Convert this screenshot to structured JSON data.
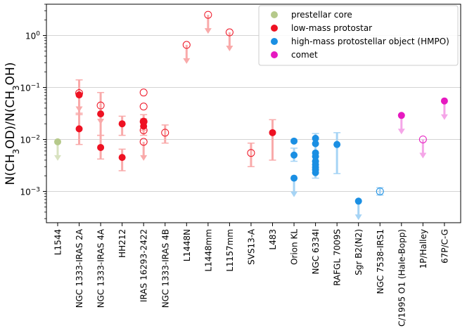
{
  "chart_data": {
    "type": "scatter",
    "title": "",
    "xlabel": "",
    "ylabel": "N(CH3OD)/N(CH3OH)",
    "ylabel_parts": {
      "p1": "N(CH",
      "s1": "3",
      "p2": "OD)/N(CH",
      "s2": "3",
      "p3": "OH)"
    },
    "yscale": "log",
    "ylim": [
      0.00025,
      4
    ],
    "y_ticks": [
      {
        "value": 0.001,
        "base": "10",
        "exp": "−3"
      },
      {
        "value": 0.01,
        "base": "10",
        "exp": "−2"
      },
      {
        "value": 0.1,
        "base": "10",
        "exp": "−1"
      },
      {
        "value": 1,
        "base": "10",
        "exp": "0"
      }
    ],
    "categories": [
      "L1544",
      "NGC 1333-IRAS 2A",
      "NGC 1333-IRAS 4A",
      "HH212",
      "IRAS 16293-2422",
      "NGC 1333-IRAS 4B",
      "L1448N",
      "L1448mm",
      "L1157mm",
      "SVS13-A",
      "L483",
      "Orion KL",
      "NGC 6334I",
      "RAFGL 7009S",
      "Sgr B2(N2)",
      "NGC 7538-IRS1",
      "C/1995 O1 (Hale-Bopp)",
      "1P/Halley",
      "67P/C-G"
    ],
    "classes": {
      "prestellar": {
        "label": "prestellar core",
        "color": "#b5c98a",
        "light": "#d8e2c0"
      },
      "lowmass": {
        "label": "low-mass protostar",
        "color": "#ee1122",
        "light": "#f9aaaa"
      },
      "hmpo": {
        "label": "high-mass protostellar object (HMPO)",
        "color": "#1a8fe3",
        "light": "#a6d4f5"
      },
      "comet": {
        "label": "comet",
        "color": "#e619c0",
        "light": "#f5a6e8"
      }
    },
    "legend_location": "upper right",
    "points": [
      {
        "cat": 0,
        "cls": "prestellar",
        "y": 0.009,
        "filled": true,
        "upper": true
      },
      {
        "cat": 1,
        "cls": "lowmass",
        "y": 0.072,
        "filled": true,
        "err": [
          0.03,
          0.14
        ]
      },
      {
        "cat": 1,
        "cls": "lowmass",
        "y": 0.078,
        "filled": false,
        "upper": true
      },
      {
        "cat": 1,
        "cls": "lowmass",
        "y": 0.016,
        "filled": true,
        "err": [
          0.008,
          0.032
        ]
      },
      {
        "cat": 2,
        "cls": "lowmass",
        "y": 0.031,
        "filled": true,
        "err": [
          0.012,
          0.08
        ]
      },
      {
        "cat": 2,
        "cls": "lowmass",
        "y": 0.045,
        "filled": false,
        "upper": true
      },
      {
        "cat": 2,
        "cls": "lowmass",
        "y": 0.007,
        "filled": true,
        "err": [
          0.0042,
          0.012
        ]
      },
      {
        "cat": 3,
        "cls": "lowmass",
        "y": 0.02,
        "filled": true,
        "err": [
          0.012,
          0.028
        ]
      },
      {
        "cat": 3,
        "cls": "lowmass",
        "y": 0.0045,
        "filled": true,
        "err": [
          0.0025,
          0.0065
        ]
      },
      {
        "cat": 4,
        "cls": "lowmass",
        "y": 0.022,
        "filled": true,
        "err": [
          0.015,
          0.03
        ]
      },
      {
        "cat": 4,
        "cls": "lowmass",
        "y": 0.018,
        "filled": true,
        "err": [
          0.012,
          0.025
        ]
      },
      {
        "cat": 4,
        "cls": "lowmass",
        "y": 0.08,
        "filled": false
      },
      {
        "cat": 4,
        "cls": "lowmass",
        "y": 0.043,
        "filled": false
      },
      {
        "cat": 4,
        "cls": "lowmass",
        "y": 0.022,
        "filled": false
      },
      {
        "cat": 4,
        "cls": "lowmass",
        "y": 0.015,
        "filled": false
      },
      {
        "cat": 4,
        "cls": "lowmass",
        "y": 0.009,
        "filled": false,
        "upper": true
      },
      {
        "cat": 5,
        "cls": "lowmass",
        "y": 0.0135,
        "filled": false,
        "err": [
          0.0085,
          0.019
        ]
      },
      {
        "cat": 6,
        "cls": "lowmass",
        "y": 0.66,
        "filled": false,
        "upper": true
      },
      {
        "cat": 7,
        "cls": "lowmass",
        "y": 2.5,
        "filled": false,
        "upper": true
      },
      {
        "cat": 8,
        "cls": "lowmass",
        "y": 1.15,
        "filled": false,
        "upper": true
      },
      {
        "cat": 9,
        "cls": "lowmass",
        "y": 0.0055,
        "filled": false,
        "err": [
          0.003,
          0.0085
        ]
      },
      {
        "cat": 10,
        "cls": "lowmass",
        "y": 0.0135,
        "filled": true,
        "err": [
          0.004,
          0.024
        ]
      },
      {
        "cat": 11,
        "cls": "hmpo",
        "y": 0.0093,
        "filled": true
      },
      {
        "cat": 11,
        "cls": "hmpo",
        "y": 0.005,
        "filled": true,
        "err": [
          0.0038,
          0.0068
        ]
      },
      {
        "cat": 11,
        "cls": "hmpo",
        "y": 0.0018,
        "filled": true,
        "upper": true
      },
      {
        "cat": 12,
        "cls": "hmpo",
        "y": 0.0105,
        "filled": true,
        "err": [
          0.0018,
          0.013
        ]
      },
      {
        "cat": 12,
        "cls": "hmpo",
        "y": 0.0083,
        "filled": true
      },
      {
        "cat": 12,
        "cls": "hmpo",
        "y": 0.0055,
        "filled": true
      },
      {
        "cat": 12,
        "cls": "hmpo",
        "y": 0.0047,
        "filled": true
      },
      {
        "cat": 12,
        "cls": "hmpo",
        "y": 0.0038,
        "filled": true
      },
      {
        "cat": 12,
        "cls": "hmpo",
        "y": 0.0033,
        "filled": true
      },
      {
        "cat": 12,
        "cls": "hmpo",
        "y": 0.0029,
        "filled": true
      },
      {
        "cat": 12,
        "cls": "hmpo",
        "y": 0.0026,
        "filled": true
      },
      {
        "cat": 12,
        "cls": "hmpo",
        "y": 0.0023,
        "filled": true
      },
      {
        "cat": 13,
        "cls": "hmpo",
        "y": 0.008,
        "filled": true,
        "err": [
          0.0022,
          0.0135
        ]
      },
      {
        "cat": 14,
        "cls": "hmpo",
        "y": 0.00065,
        "filled": true,
        "upper": true
      },
      {
        "cat": 15,
        "cls": "hmpo",
        "y": 0.001,
        "filled": false,
        "err": [
          0.00085,
          0.00118
        ]
      },
      {
        "cat": 16,
        "cls": "comet",
        "y": 0.029,
        "filled": true,
        "upper": true
      },
      {
        "cat": 17,
        "cls": "comet",
        "y": 0.01,
        "filled": false,
        "upper": true
      },
      {
        "cat": 18,
        "cls": "comet",
        "y": 0.055,
        "filled": true,
        "upper": true
      }
    ]
  }
}
